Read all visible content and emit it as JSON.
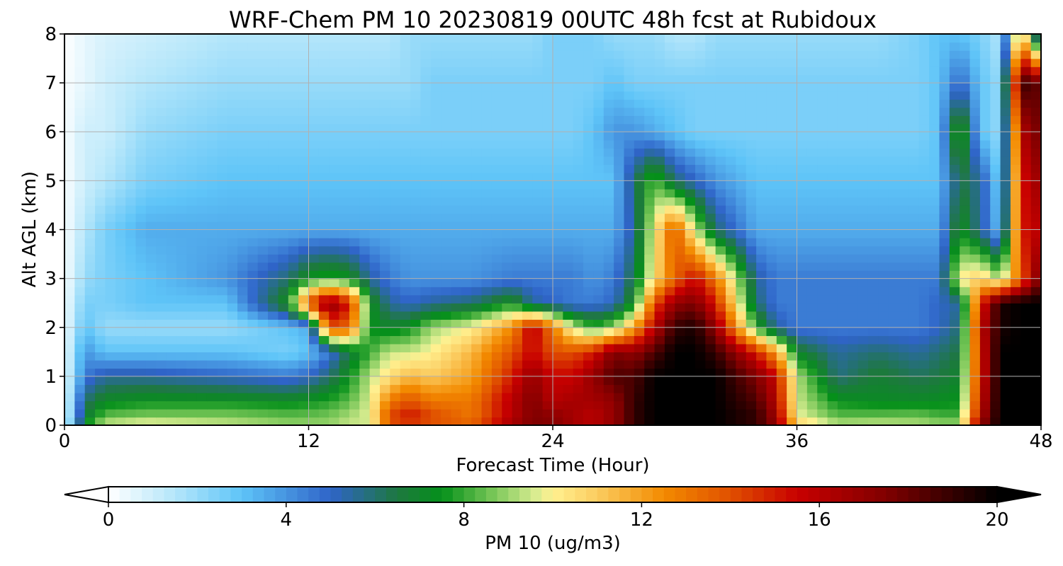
{
  "chart_data": {
    "type": "heatmap",
    "title": "WRF-Chem PM 10  20230819 00UTC 48h fcst at Rubidoux",
    "xlabel": "Forecast Time (Hour)",
    "ylabel": "Alt AGL (km)",
    "xlim": [
      0,
      48
    ],
    "ylim": [
      0,
      8
    ],
    "xticks": [
      "0",
      "12",
      "24",
      "36",
      "48"
    ],
    "yticks": [
      "0",
      "1",
      "2",
      "3",
      "4",
      "5",
      "6",
      "7",
      "8"
    ],
    "grid": true,
    "colorbar": {
      "label": "PM 10  (ug/m3)",
      "range": [
        0,
        20
      ],
      "ticks": [
        "0",
        "4",
        "8",
        "12",
        "16",
        "20"
      ],
      "extend": "both",
      "stops": [
        {
          "v": 0,
          "c": "#ffffff"
        },
        {
          "v": 1.5,
          "c": "#b4e6fa"
        },
        {
          "v": 3,
          "c": "#5ec4f8"
        },
        {
          "v": 5,
          "c": "#2f64c8"
        },
        {
          "v": 6.5,
          "c": "#1e7840"
        },
        {
          "v": 7.5,
          "c": "#05901a"
        },
        {
          "v": 8.7,
          "c": "#7cc85a"
        },
        {
          "v": 9.6,
          "c": "#d8ec90"
        },
        {
          "v": 10,
          "c": "#fff090"
        },
        {
          "v": 11,
          "c": "#fbcc60"
        },
        {
          "v": 12.5,
          "c": "#f38a00"
        },
        {
          "v": 14,
          "c": "#e05000"
        },
        {
          "v": 15.5,
          "c": "#c80000"
        },
        {
          "v": 17.5,
          "c": "#800000"
        },
        {
          "v": 20,
          "c": "#000000"
        }
      ]
    },
    "x_hours": [
      0,
      1,
      2,
      4,
      8,
      11,
      12,
      13,
      14,
      15,
      16,
      17,
      18,
      20,
      22,
      23,
      24,
      25,
      26,
      27,
      28,
      29,
      30,
      31,
      32,
      34,
      35,
      36,
      38,
      40,
      42,
      43,
      44,
      45,
      46,
      47,
      48
    ],
    "y_km": [
      0,
      0.25,
      0.5,
      1,
      1.5,
      2,
      2.5,
      3,
      4,
      5,
      6,
      7,
      8
    ],
    "values": [
      [
        0.5,
        7.5,
        9.5,
        10,
        9.5,
        9,
        9,
        9,
        9.5,
        9.5,
        14,
        14.5,
        14,
        13.5,
        16.5,
        17.5,
        17.5,
        16.5,
        16,
        17,
        19,
        20,
        20,
        20,
        20,
        19,
        17,
        11,
        9.3,
        9.5,
        9.3,
        9,
        9,
        17,
        20,
        20,
        20
      ],
      [
        0.3,
        6.5,
        8.2,
        8.5,
        8.5,
        8.2,
        8.3,
        8.5,
        9,
        9.7,
        14,
        15,
        14,
        13,
        16,
        17.5,
        17,
        16.5,
        16,
        17,
        19,
        20,
        20,
        20,
        20,
        19,
        16.5,
        9.8,
        8.2,
        8.2,
        8.3,
        8,
        8,
        16,
        20,
        20,
        20
      ],
      [
        0.3,
        6,
        7.2,
        7.5,
        7.5,
        7.3,
        7.5,
        7.8,
        8.4,
        9.6,
        13,
        14,
        13,
        13,
        16,
        17.5,
        16,
        16.5,
        16.5,
        17,
        19,
        20,
        20,
        20,
        20,
        18.5,
        16,
        9.5,
        7.5,
        7.2,
        7.2,
        7.3,
        7.5,
        15.5,
        20,
        20,
        20
      ],
      [
        0.3,
        4.5,
        5.5,
        5.5,
        5,
        4.5,
        5,
        6,
        7.5,
        9.3,
        10.5,
        11.5,
        11,
        12,
        15,
        17,
        15.5,
        15.5,
        17,
        18.5,
        18.5,
        20,
        20,
        20,
        20,
        17.5,
        15.5,
        9.3,
        5.8,
        6.8,
        6.2,
        6.5,
        7,
        15,
        20,
        20,
        20
      ],
      [
        0.2,
        4,
        3,
        3,
        3,
        2.5,
        3,
        4.5,
        6.5,
        8,
        9.5,
        9.5,
        10,
        11.5,
        14,
        15.5,
        14,
        14,
        15,
        17.5,
        17,
        18.5,
        20,
        20,
        19,
        15,
        12,
        7,
        5.5,
        6,
        5.5,
        6,
        6.5,
        15,
        20,
        20,
        20
      ],
      [
        0.2,
        3,
        2,
        2,
        2,
        3,
        3.5,
        14,
        13.5,
        7.5,
        7,
        7.5,
        9,
        10,
        12.5,
        16,
        13,
        9.5,
        8,
        9,
        12,
        16,
        19,
        19.5,
        17,
        8,
        5.5,
        4.5,
        4.5,
        4.5,
        4.5,
        5,
        6,
        15.5,
        19.5,
        20,
        20
      ],
      [
        0.2,
        2.5,
        2.5,
        3,
        3,
        7.5,
        14,
        17.5,
        15,
        7.5,
        5.5,
        5,
        5.5,
        6,
        7.5,
        5.5,
        5,
        4.5,
        4.5,
        5,
        7.5,
        14,
        17,
        17.5,
        15,
        6,
        4.5,
        4.5,
        4.5,
        4.5,
        4.5,
        5,
        5.5,
        14.5,
        19.5,
        20,
        20
      ],
      [
        0.1,
        2,
        2.5,
        3,
        4,
        6,
        7.5,
        8,
        7.5,
        5.5,
        4.5,
        4,
        4,
        4,
        4.5,
        4.5,
        4.5,
        4.5,
        4,
        4.5,
        6.5,
        10.5,
        13.5,
        15.5,
        13,
        5.5,
        4.5,
        4.5,
        4.5,
        4.5,
        4.5,
        4.5,
        10,
        11,
        9,
        13.5,
        18
      ],
      [
        0.1,
        1.5,
        2.5,
        3.5,
        3.5,
        3.5,
        3.5,
        3.5,
        3.5,
        3.5,
        3.5,
        3.5,
        3.5,
        3.5,
        3.5,
        3.5,
        3.5,
        3.5,
        3.5,
        3.5,
        5.5,
        10,
        14,
        9.5,
        6,
        3.5,
        3.5,
        3.5,
        3.5,
        3.5,
        3.5,
        3.5,
        7.5,
        5.5,
        3,
        15,
        16
      ],
      [
        0.1,
        1,
        1.5,
        2.5,
        3,
        3,
        3,
        3,
        3,
        3,
        3,
        3,
        3,
        3,
        3,
        3,
        3,
        3,
        3,
        3,
        6,
        8.5,
        6,
        5,
        4,
        3,
        3,
        3,
        3,
        3,
        3,
        3,
        6.5,
        5.5,
        2.5,
        15,
        17
      ],
      [
        0.1,
        1,
        1,
        2,
        2.5,
        2.5,
        2.5,
        2.5,
        2.5,
        2.5,
        2.5,
        2.5,
        2.5,
        2.5,
        2.5,
        2.5,
        2.5,
        2.5,
        3,
        4,
        4,
        3.5,
        3,
        2.5,
        2.5,
        2.5,
        2.5,
        2.5,
        2.5,
        2.5,
        2.5,
        3,
        8.5,
        3,
        2,
        16,
        18
      ],
      [
        0.1,
        0.5,
        1,
        1.5,
        2,
        2,
        2,
        2,
        2,
        2,
        2,
        2,
        2.5,
        2.5,
        2.5,
        2.5,
        2.5,
        2.5,
        2.5,
        3,
        2.5,
        2.5,
        2.5,
        2.5,
        2.5,
        2.5,
        2.5,
        2.5,
        2.5,
        2.5,
        2.5,
        3,
        5,
        3,
        2,
        19,
        18
      ],
      [
        0,
        0.5,
        0.8,
        1,
        1.5,
        1.5,
        1.5,
        1.5,
        1.5,
        1.5,
        1.5,
        2,
        2,
        2,
        2,
        2,
        2.5,
        2.5,
        2.5,
        2,
        2,
        2,
        1.5,
        1.5,
        2,
        2,
        2,
        2,
        2,
        2,
        2.5,
        3,
        3,
        2.5,
        1.5,
        12,
        3
      ]
    ]
  }
}
